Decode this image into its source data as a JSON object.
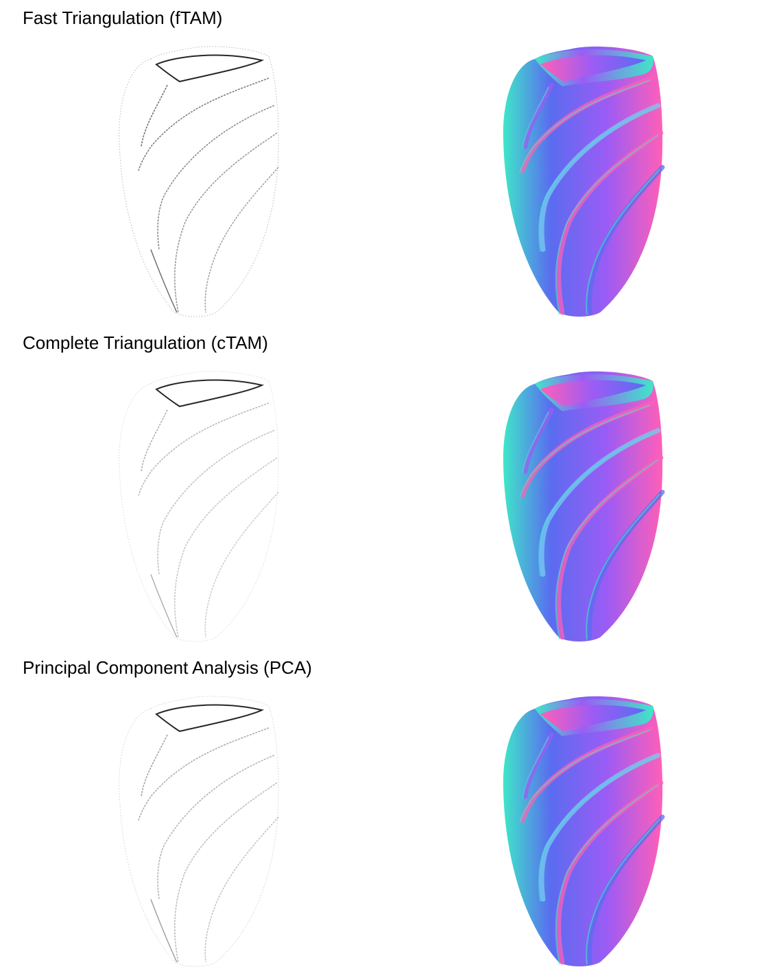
{
  "sections": [
    {
      "title": "Fast Triangulation (fTAM)",
      "edge_strength": 1.0
    },
    {
      "title": "Complete Triangulation (cTAM)",
      "edge_strength": 0.55
    },
    {
      "title": "Principal Component Analysis (PCA)",
      "edge_strength": 0.65
    }
  ],
  "colors": {
    "background": "#ffffff",
    "normal_cyan": "#3fe6c8",
    "normal_blue": "#5a6cf0",
    "normal_violet": "#9b5cf5",
    "normal_pink": "#ff5fb8",
    "normal_lightblue": "#7cc8f5"
  }
}
